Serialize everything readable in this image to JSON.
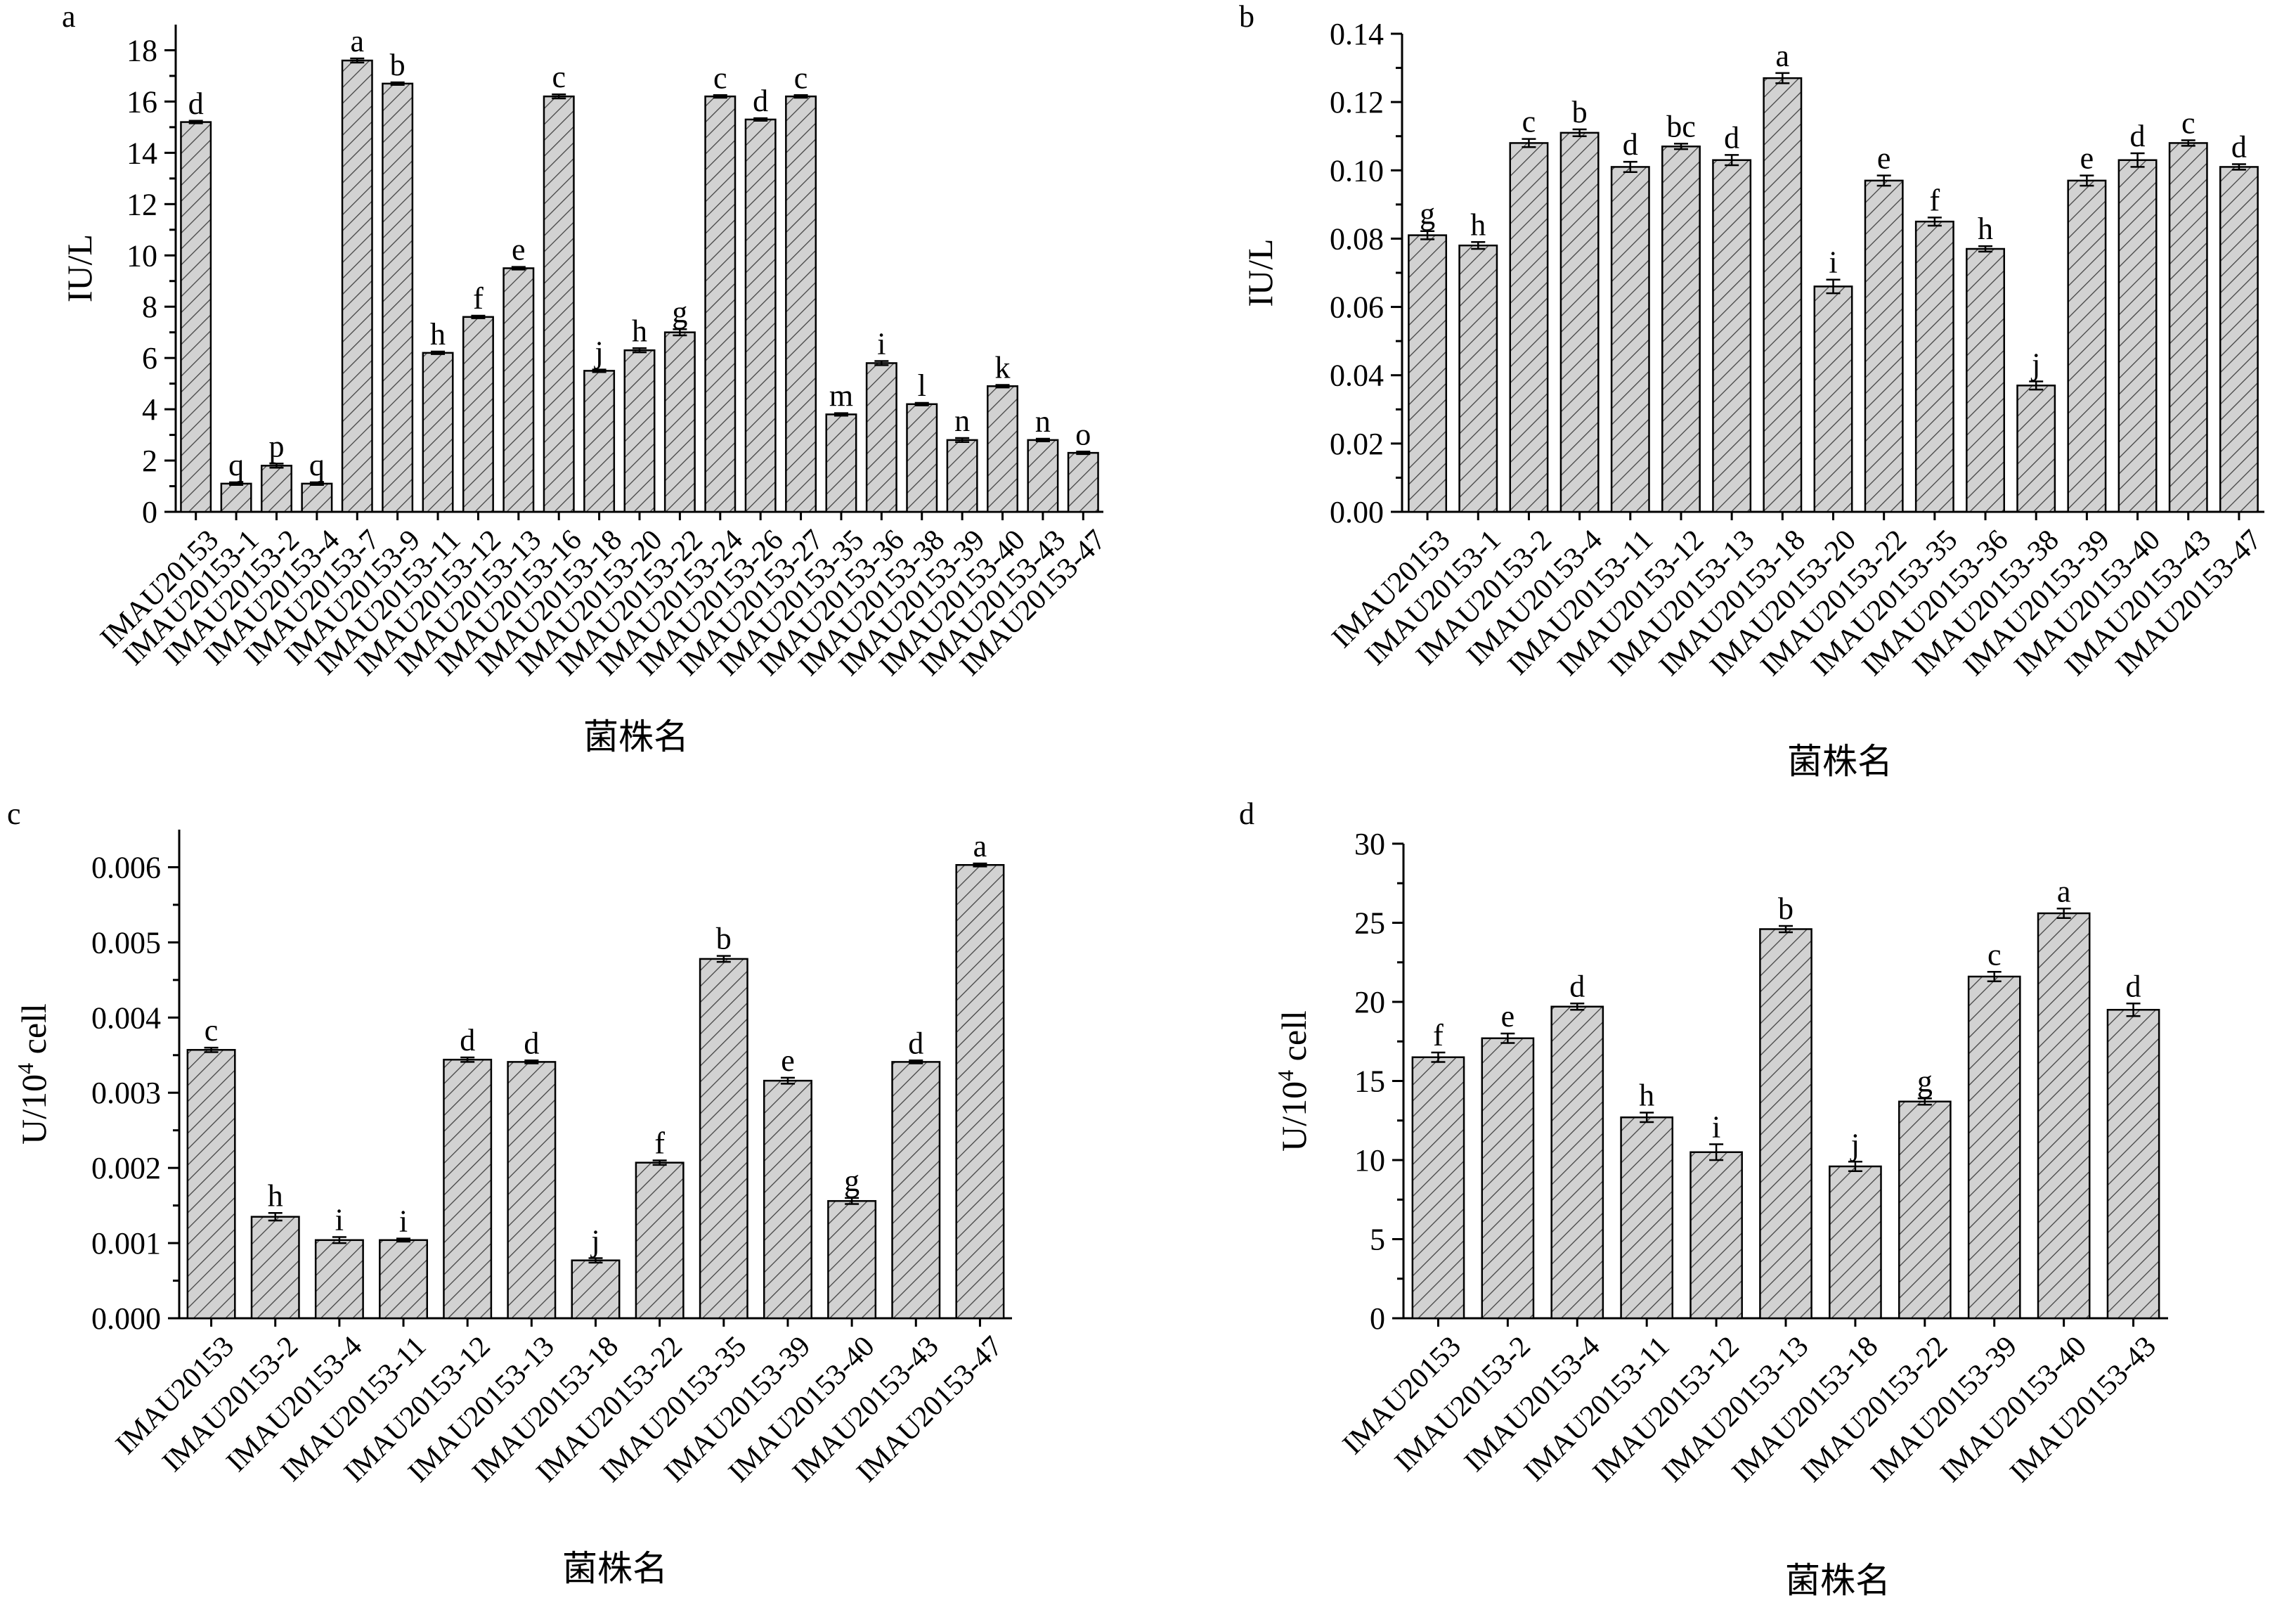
{
  "chart_data": [
    {
      "panel": "a",
      "type": "bar",
      "categories": [
        "IMAU20153",
        "IMAU20153-1",
        "IMAU20153-2",
        "IMAU20153-4",
        "IMAU20153-7",
        "IMAU20153-9",
        "IMAU20153-11",
        "IMAU20153-12",
        "IMAU20153-13",
        "IMAU20153-16",
        "IMAU20153-18",
        "IMAU20153-20",
        "IMAU20153-22",
        "IMAU20153-24",
        "IMAU20153-26",
        "IMAU20153-27",
        "IMAU20153-35",
        "IMAU20153-36",
        "IMAU20153-38",
        "IMAU20153-39",
        "IMAU20153-40",
        "IMAU20153-43",
        "IMAU20153-47"
      ],
      "values": [
        15.2,
        1.1,
        1.8,
        1.1,
        17.6,
        16.7,
        6.2,
        7.6,
        9.5,
        16.2,
        5.5,
        6.3,
        7.0,
        16.2,
        15.3,
        16.2,
        3.8,
        5.8,
        4.2,
        2.8,
        4.9,
        2.8,
        2.3
      ],
      "errors": [
        0.05,
        0.05,
        0.08,
        0.05,
        0.08,
        0.05,
        0.05,
        0.05,
        0.05,
        0.08,
        0.05,
        0.08,
        0.12,
        0.05,
        0.05,
        0.05,
        0.05,
        0.08,
        0.05,
        0.08,
        0.05,
        0.05,
        0.05
      ],
      "letters": [
        "d",
        "q",
        "p",
        "q",
        "a",
        "b",
        "h",
        "f",
        "e",
        "c",
        "j",
        "h",
        "g",
        "c",
        "d",
        "c",
        "m",
        "i",
        "l",
        "n",
        "k",
        "n",
        "o"
      ],
      "ylabel": "IU/L",
      "xlabel": "菌株名",
      "ylim": [
        0,
        19
      ],
      "yticks": [
        0,
        2,
        4,
        6,
        8,
        10,
        12,
        14,
        16,
        18
      ],
      "ytick_labels": [
        "0",
        "2",
        "4",
        "6",
        "8",
        "10",
        "12",
        "14",
        "16",
        "18"
      ]
    },
    {
      "panel": "b",
      "type": "bar",
      "categories": [
        "IMAU20153",
        "IMAU20153-1",
        "IMAU20153-2",
        "IMAU20153-4",
        "IMAU20153-11",
        "IMAU20153-12",
        "IMAU20153-13",
        "IMAU20153-18",
        "IMAU20153-20",
        "IMAU20153-22",
        "IMAU20153-35",
        "IMAU20153-36",
        "IMAU20153-38",
        "IMAU20153-39",
        "IMAU20153-40",
        "IMAU20153-43",
        "IMAU20153-47"
      ],
      "values": [
        0.081,
        0.078,
        0.108,
        0.111,
        0.101,
        0.107,
        0.103,
        0.127,
        0.066,
        0.097,
        0.085,
        0.077,
        0.037,
        0.097,
        0.103,
        0.108,
        0.101
      ],
      "errors": [
        0.0012,
        0.001,
        0.0012,
        0.001,
        0.0015,
        0.0008,
        0.0015,
        0.0015,
        0.002,
        0.0015,
        0.0012,
        0.0008,
        0.0012,
        0.0015,
        0.002,
        0.0008,
        0.0008
      ],
      "letters": [
        "g",
        "h",
        "c",
        "b",
        "d",
        "bc",
        "d",
        "a",
        "i",
        "e",
        "f",
        "h",
        "j",
        "e",
        "d",
        "c",
        "d"
      ],
      "ylabel": "IU/L",
      "xlabel": "菌株名",
      "ylim": [
        0,
        0.14
      ],
      "yticks": [
        0,
        0.02,
        0.04,
        0.06,
        0.08,
        0.1,
        0.12,
        0.14
      ],
      "ytick_labels": [
        "0.00",
        "0.02",
        "0.04",
        "0.06",
        "0.08",
        "0.10",
        "0.12",
        "0.14"
      ]
    },
    {
      "panel": "c",
      "type": "bar",
      "categories": [
        "IMAU20153",
        "IMAU20153-2",
        "IMAU20153-4",
        "IMAU20153-11",
        "IMAU20153-12",
        "IMAU20153-13",
        "IMAU20153-18",
        "IMAU20153-22",
        "IMAU20153-35",
        "IMAU20153-39",
        "IMAU20153-40",
        "IMAU20153-43",
        "IMAU20153-47"
      ],
      "values": [
        0.00357,
        0.00135,
        0.00104,
        0.00104,
        0.00344,
        0.00341,
        0.00077,
        0.00207,
        0.00478,
        0.00316,
        0.00156,
        0.00341,
        0.00603
      ],
      "errors": [
        3e-05,
        5e-05,
        4e-05,
        2e-05,
        3e-05,
        2e-05,
        3e-05,
        3e-05,
        4e-05,
        4e-05,
        4e-05,
        2e-05,
        2e-05
      ],
      "letters": [
        "c",
        "h",
        "i",
        "i",
        "d",
        "d",
        "j",
        "f",
        "b",
        "e",
        "g",
        "d",
        "a"
      ],
      "ylabel_main": "U/10",
      "ylabel_sup": "4",
      "ylabel_tail": " cell",
      "xlabel": "菌株名",
      "ylim": [
        0,
        0.0065
      ],
      "yticks": [
        0,
        0.001,
        0.002,
        0.003,
        0.004,
        0.005,
        0.006
      ],
      "ytick_labels": [
        "0.000",
        "0.001",
        "0.002",
        "0.003",
        "0.004",
        "0.005",
        "0.006"
      ]
    },
    {
      "panel": "d",
      "type": "bar",
      "categories": [
        "IMAU20153",
        "IMAU20153-2",
        "IMAU20153-4",
        "IMAU20153-11",
        "IMAU20153-12",
        "IMAU20153-13",
        "IMAU20153-18",
        "IMAU20153-22",
        "IMAU20153-39",
        "IMAU20153-40",
        "IMAU20153-43"
      ],
      "values": [
        16.5,
        17.7,
        19.7,
        12.7,
        10.5,
        24.6,
        9.6,
        13.7,
        21.6,
        25.6,
        19.5
      ],
      "errors": [
        0.3,
        0.3,
        0.2,
        0.3,
        0.5,
        0.2,
        0.3,
        0.2,
        0.3,
        0.3,
        0.4
      ],
      "letters": [
        "f",
        "e",
        "d",
        "h",
        "i",
        "b",
        "j",
        "g",
        "c",
        "a",
        "d"
      ],
      "ylabel_main": "U/10",
      "ylabel_sup": "4",
      "ylabel_tail": " cell",
      "xlabel": "菌株名",
      "ylim": [
        0,
        30
      ],
      "yticks": [
        0,
        5,
        10,
        15,
        20,
        25,
        30
      ],
      "ytick_labels": [
        "0",
        "5",
        "10",
        "15",
        "20",
        "25",
        "30"
      ]
    }
  ]
}
